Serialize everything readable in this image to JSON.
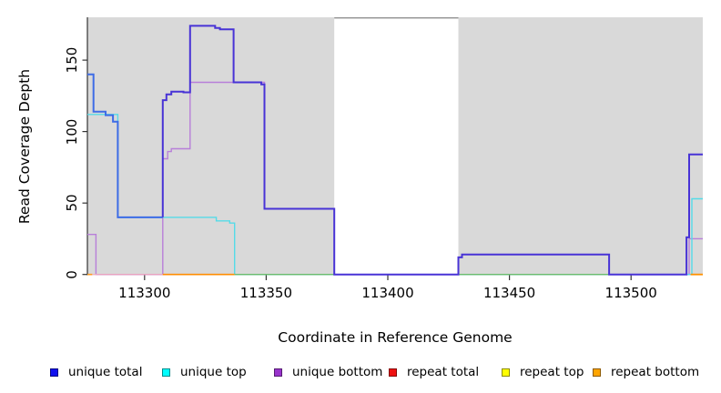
{
  "figure": {
    "xlabel": "Coordinate in Reference Genome",
    "ylabel": "Read Coverage Depth"
  },
  "chart_data": {
    "type": "line",
    "subtype": "step-after",
    "title": "",
    "xlabel": "Coordinate in Reference Genome",
    "ylabel": "Read Coverage Depth",
    "xlim": [
      113276.5,
      113529.5
    ],
    "ylim": [
      0,
      180
    ],
    "x_ticks": [
      113300,
      113350,
      113400,
      113450,
      113500
    ],
    "y_ticks": [
      0,
      50,
      100,
      150
    ],
    "grid": false,
    "panel_background": "#d9d9d9",
    "axis_color": "#333333",
    "highlight_region": {
      "x0": 113378,
      "x1": 113429,
      "fill": "#ffffff",
      "top_border": "#8f8f8f"
    },
    "series": [
      {
        "name": "unique-bottom",
        "legend_key": "unique bottom",
        "color": "#b87fd9",
        "width": 1.4,
        "points": [
          [
            113276.5,
            28
          ],
          [
            113280,
            0
          ],
          [
            113307.5,
            81
          ],
          [
            113309.5,
            86
          ],
          [
            113311,
            88
          ],
          [
            113318.7,
            134.5
          ],
          [
            113349.3,
            46
          ],
          [
            113378,
            0
          ],
          [
            113523.9,
            25
          ],
          [
            113529.5,
            25
          ]
        ]
      },
      {
        "name": "unique-top",
        "legend_key": "unique top",
        "color": "#55dbe8",
        "width": 1.4,
        "points": [
          [
            113276.5,
            112
          ],
          [
            113289,
            40
          ],
          [
            113329.5,
            37.5
          ],
          [
            113335,
            36
          ],
          [
            113337,
            0
          ],
          [
            113525,
            53
          ],
          [
            113529.5,
            53
          ]
        ]
      },
      {
        "name": "zero-line-pink",
        "legend_key": "repeat total",
        "color": "#f2aabb",
        "width": 1.2,
        "points": [
          [
            113278,
            0
          ],
          [
            113307.5,
            0
          ]
        ]
      },
      {
        "name": "zero-line-orange-left",
        "legend_key": "repeat bottom",
        "color": "#ff9a20",
        "width": 1.6,
        "points": [
          [
            113276.5,
            0
          ],
          [
            113278.5,
            0
          ]
        ]
      },
      {
        "name": "zero-line-orange-mid",
        "legend_key": "repeat bottom",
        "color": "#ff8c00",
        "width": 1.6,
        "points": [
          [
            113307.5,
            0
          ],
          [
            113337,
            0
          ]
        ]
      },
      {
        "name": "zero-line-green",
        "legend_key": "",
        "color": "#6dbb6d",
        "width": 1.3,
        "points": [
          [
            113337,
            0
          ],
          [
            113491,
            0
          ]
        ]
      },
      {
        "name": "zero-line-orange-right",
        "legend_key": "repeat bottom",
        "color": "#ff9000",
        "width": 1.8,
        "points": [
          [
            113524.5,
            0
          ],
          [
            113529.5,
            0
          ]
        ]
      },
      {
        "name": "unique-total-left",
        "legend_key": "unique total",
        "color": "#3e6ce6",
        "width": 2,
        "points": [
          [
            113276.5,
            140
          ],
          [
            113279,
            114
          ],
          [
            113284,
            111.5
          ],
          [
            113287,
            107
          ],
          [
            113289,
            40
          ],
          [
            113307.5,
            40
          ]
        ]
      },
      {
        "name": "unique-total",
        "legend_key": "unique total",
        "color": "#4833d6",
        "width": 2,
        "points": [
          [
            113307.5,
            40
          ],
          [
            113307.5,
            122
          ],
          [
            113309,
            126
          ],
          [
            113311,
            128
          ],
          [
            113316,
            127.5
          ],
          [
            113318.7,
            174
          ],
          [
            113329,
            172.5
          ],
          [
            113331,
            171.5
          ],
          [
            113336.6,
            134.5
          ],
          [
            113348,
            133
          ],
          [
            113349.3,
            46
          ],
          [
            113378,
            0
          ],
          [
            113429,
            12
          ],
          [
            113430.5,
            14
          ],
          [
            113491,
            0
          ],
          [
            113522.8,
            26
          ],
          [
            113523.9,
            84
          ],
          [
            113529.5,
            84
          ]
        ]
      }
    ],
    "legend": {
      "position": "bottom",
      "items": [
        {
          "label": "unique total",
          "color": "#1010ee"
        },
        {
          "label": "unique top",
          "color": "#00ffff"
        },
        {
          "label": "unique bottom",
          "color": "#9933cc"
        },
        {
          "label": "repeat total",
          "color": "#ee1111"
        },
        {
          "label": "repeat top",
          "color": "#ffff00"
        },
        {
          "label": "repeat bottom",
          "color": "#ffa500"
        }
      ]
    }
  }
}
